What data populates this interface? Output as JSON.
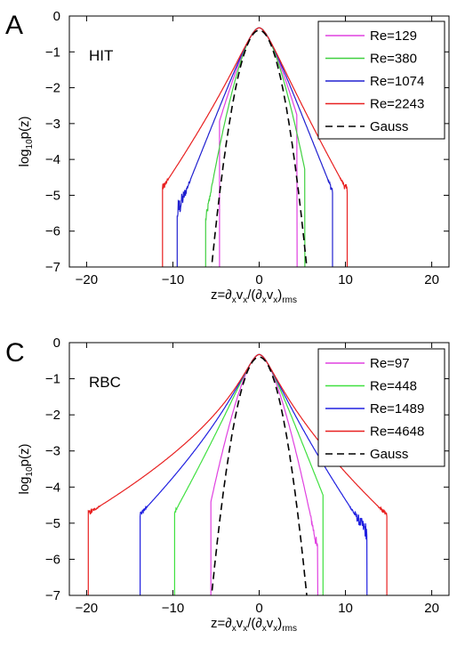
{
  "chart_data": [
    {
      "type": "line",
      "panel_letter": "A",
      "panel_label": "HIT",
      "xlabel_parts": [
        "z=∂",
        "x",
        "v",
        "x",
        "/(∂",
        "x",
        "v",
        "x",
        ")",
        "rms"
      ],
      "ylabel_parts": [
        "log",
        "10",
        "p(z)"
      ],
      "xlim": [
        -22,
        22
      ],
      "ylim": [
        -7,
        0
      ],
      "xticks": [
        -20,
        -10,
        0,
        10,
        20
      ],
      "yticks": [
        0,
        -1,
        -2,
        -3,
        -4,
        -5,
        -6,
        -7
      ],
      "legend_position": "top-right",
      "series": [
        {
          "name": "Re=129",
          "color": "#e040e0",
          "dash": "none",
          "alpha_right": 1.1,
          "alpha_left": 1.1,
          "noise": 0.25,
          "x_cut_left": -4.6,
          "x_cut_right": 4.4
        },
        {
          "name": "Re=380",
          "color": "#40d040",
          "dash": "none",
          "alpha_right": 1.3,
          "alpha_left": 1.35,
          "noise": 0.2,
          "x_cut_left": -6.2,
          "x_cut_right": 5.3
        },
        {
          "name": "Re=1074",
          "color": "#2020d0",
          "dash": "none",
          "alpha_right": 0.95,
          "alpha_left": 0.95,
          "noise": 0.5,
          "x_cut_left": -9.5,
          "x_cut_right": 8.5
        },
        {
          "name": "Re=2243",
          "color": "#e82020",
          "dash": "none",
          "alpha_right": 0.85,
          "alpha_left": 0.8,
          "noise": 0.6,
          "x_cut_left": -11.2,
          "x_cut_right": 10.2
        },
        {
          "name": "Gauss",
          "color": "#000000",
          "dash": "8,5",
          "gauss": true
        }
      ]
    },
    {
      "type": "line",
      "panel_letter": "C",
      "panel_label": "RBC",
      "xlabel_parts": [
        "z=∂",
        "x",
        "v",
        "x",
        "/(∂",
        "x",
        "v",
        "x",
        ")",
        "rms"
      ],
      "ylabel_parts": [
        "log",
        "10",
        "p(z)"
      ],
      "xlim": [
        -22,
        22
      ],
      "ylim": [
        -7,
        0
      ],
      "xticks": [
        -20,
        -10,
        0,
        10,
        20
      ],
      "yticks": [
        0,
        -1,
        -2,
        -3,
        -4,
        -5,
        -6,
        -7
      ],
      "legend_position": "top-right",
      "series": [
        {
          "name": "Re=97",
          "color": "#e040e0",
          "dash": "none",
          "alpha_right": 1.25,
          "alpha_left": 1.25,
          "noise": 0.25,
          "x_cut_left": -5.6,
          "x_cut_right": 6.8
        },
        {
          "name": "Re=448",
          "color": "#40e040",
          "dash": "none",
          "alpha_right": 0.95,
          "alpha_left": 0.85,
          "noise": 0.45,
          "x_cut_left": -9.8,
          "x_cut_right": 7.4
        },
        {
          "name": "Re=1489",
          "color": "#2020e0",
          "dash": "none",
          "alpha_right": 0.8,
          "alpha_left": 0.72,
          "noise": 0.5,
          "x_cut_left": -13.8,
          "x_cut_right": 12.5
        },
        {
          "name": "Re=4648",
          "color": "#e82020",
          "dash": "none",
          "alpha_right": 0.7,
          "alpha_left": 0.62,
          "noise": 0.55,
          "x_cut_left": -19.8,
          "x_cut_right": 14.8
        },
        {
          "name": "Gauss",
          "color": "#000000",
          "dash": "8,5",
          "gauss": true
        }
      ]
    }
  ]
}
